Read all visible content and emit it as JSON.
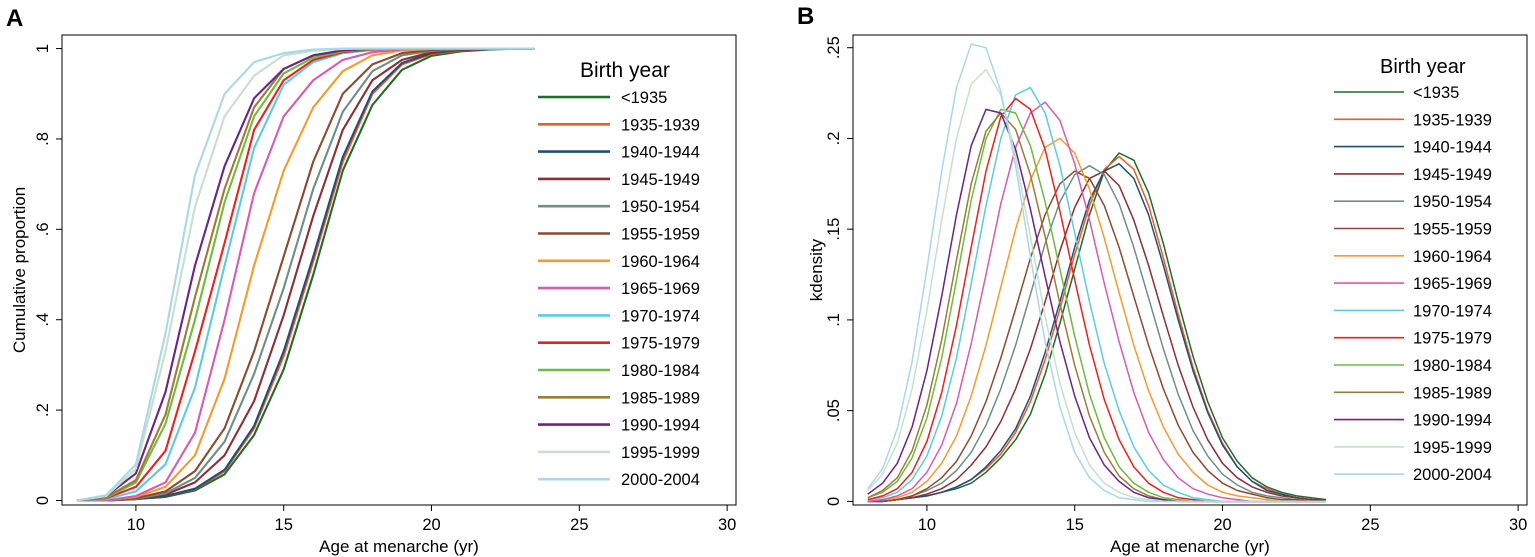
{
  "legend_title": "Birth year",
  "series_colors": [
    "#1f6b2c",
    "#ef5a26",
    "#1f4f7a",
    "#8b2f35",
    "#6f8f86",
    "#8c4a2f",
    "#f59a2e",
    "#d65bb1",
    "#5ccbe0",
    "#e8221f",
    "#6fbb3d",
    "#9c7a3a",
    "#6b2388",
    "#c9dfcc",
    "#a9d8e6"
  ],
  "chart_data": [
    {
      "panel_label": "A",
      "type": "line",
      "title": "",
      "xlabel": "Age at menarche (yr)",
      "ylabel": "Cumulative proportion",
      "xlim": [
        7.5,
        30.3
      ],
      "ylim": [
        -0.01,
        1.03
      ],
      "xticks": [
        10,
        15,
        20,
        25,
        30
      ],
      "yticks": [
        0,
        0.2,
        0.4,
        0.6,
        0.8,
        1
      ],
      "ytick_labels": [
        "0",
        ".2",
        ".4",
        ".6",
        ".8",
        "1"
      ],
      "grid": false,
      "legend_position": "right",
      "x": [
        8,
        9,
        10,
        11,
        12,
        13,
        14,
        15,
        16,
        17,
        18,
        19,
        20,
        21,
        22,
        23,
        23.5
      ],
      "series": [
        {
          "name": "<1935",
          "values": [
            0,
            0,
            0.003,
            0.008,
            0.022,
            0.058,
            0.145,
            0.29,
            0.5,
            0.73,
            0.875,
            0.953,
            0.984,
            0.994,
            0.998,
            1,
            1
          ]
        },
        {
          "name": "1935-1939",
          "values": [
            0,
            0,
            0.003,
            0.01,
            0.025,
            0.065,
            0.16,
            0.32,
            0.53,
            0.75,
            0.9,
            0.965,
            0.988,
            0.996,
            0.999,
            1,
            1
          ]
        },
        {
          "name": "1940-1944",
          "values": [
            0,
            0,
            0.003,
            0.01,
            0.026,
            0.068,
            0.165,
            0.33,
            0.54,
            0.76,
            0.905,
            0.968,
            0.99,
            0.997,
            0.999,
            1,
            1
          ]
        },
        {
          "name": "1945-1949",
          "values": [
            0,
            0,
            0.004,
            0.013,
            0.04,
            0.1,
            0.22,
            0.41,
            0.63,
            0.82,
            0.93,
            0.975,
            0.992,
            0.997,
            0.999,
            1,
            1
          ]
        },
        {
          "name": "1950-1954",
          "values": [
            0,
            0,
            0.004,
            0.016,
            0.05,
            0.13,
            0.28,
            0.47,
            0.69,
            0.86,
            0.95,
            0.985,
            0.995,
            0.999,
            1,
            1,
            1
          ]
        },
        {
          "name": "1955-1959",
          "values": [
            0,
            0,
            0.005,
            0.02,
            0.065,
            0.16,
            0.33,
            0.54,
            0.75,
            0.9,
            0.965,
            0.99,
            0.997,
            1,
            1,
            1,
            1
          ]
        },
        {
          "name": "1960-1964",
          "values": [
            0,
            0,
            0.008,
            0.03,
            0.1,
            0.27,
            0.52,
            0.73,
            0.87,
            0.95,
            0.985,
            0.996,
            0.999,
            1,
            1,
            1,
            1
          ]
        },
        {
          "name": "1965-1969",
          "values": [
            0,
            0,
            0.01,
            0.04,
            0.15,
            0.4,
            0.68,
            0.85,
            0.93,
            0.975,
            0.992,
            0.998,
            1,
            1,
            1,
            1,
            1
          ]
        },
        {
          "name": "1970-1974",
          "values": [
            0,
            0.003,
            0.02,
            0.08,
            0.25,
            0.52,
            0.78,
            0.92,
            0.97,
            0.99,
            0.997,
            1,
            1,
            1,
            1,
            1,
            1
          ]
        },
        {
          "name": "1975-1979",
          "values": [
            0,
            0.005,
            0.03,
            0.11,
            0.33,
            0.57,
            0.82,
            0.93,
            0.975,
            0.992,
            0.998,
            1,
            1,
            1,
            1,
            1,
            1
          ]
        },
        {
          "name": "1980-1984",
          "values": [
            0,
            0.006,
            0.04,
            0.17,
            0.4,
            0.66,
            0.85,
            0.945,
            0.98,
            0.994,
            0.999,
            1,
            1,
            1,
            1,
            1,
            1
          ]
        },
        {
          "name": "1985-1989",
          "values": [
            0,
            0.007,
            0.045,
            0.19,
            0.45,
            0.69,
            0.87,
            0.955,
            0.985,
            0.996,
            1,
            1,
            1,
            1,
            1,
            1,
            1
          ]
        },
        {
          "name": "1990-1994",
          "values": [
            0,
            0.01,
            0.06,
            0.24,
            0.52,
            0.74,
            0.89,
            0.955,
            0.985,
            0.996,
            1,
            1,
            1,
            1,
            1,
            1,
            1
          ]
        },
        {
          "name": "1995-1999",
          "values": [
            0,
            0.01,
            0.07,
            0.33,
            0.65,
            0.85,
            0.94,
            0.985,
            0.995,
            0.999,
            1,
            1,
            1,
            1,
            1,
            1,
            1
          ]
        },
        {
          "name": "2000-2004",
          "values": [
            0,
            0.012,
            0.08,
            0.37,
            0.72,
            0.9,
            0.97,
            0.99,
            0.998,
            1,
            1,
            1,
            1,
            1,
            1,
            1,
            1
          ]
        }
      ]
    },
    {
      "panel_label": "B",
      "type": "line",
      "title": "",
      "xlabel": "Age at menarche (yr)",
      "ylabel": "kdensity",
      "xlim": [
        7.5,
        30.3
      ],
      "ylim": [
        -0.002,
        0.257
      ],
      "xticks": [
        10,
        15,
        20,
        25,
        30
      ],
      "yticks": [
        0,
        0.05,
        0.1,
        0.15,
        0.2,
        0.25
      ],
      "ytick_labels": [
        "0",
        ".05",
        ".1",
        ".15",
        ".2",
        ".25"
      ],
      "grid": false,
      "legend_position": "right",
      "x": [
        8,
        8.5,
        9,
        9.5,
        10,
        10.5,
        11,
        11.5,
        12,
        12.5,
        13,
        13.5,
        14,
        14.5,
        15,
        15.5,
        16,
        16.5,
        17,
        17.5,
        18,
        18.5,
        19,
        19.5,
        20,
        20.5,
        21,
        21.5,
        22,
        22.5,
        23,
        23.5
      ],
      "series": [
        {
          "name": "<1935",
          "values": [
            0,
            0,
            0.001,
            0.002,
            0.003,
            0.005,
            0.007,
            0.01,
            0.016,
            0.024,
            0.034,
            0.048,
            0.07,
            0.098,
            0.128,
            0.158,
            0.182,
            0.192,
            0.188,
            0.17,
            0.142,
            0.11,
            0.08,
            0.055,
            0.035,
            0.022,
            0.013,
            0.008,
            0.005,
            0.003,
            0.002,
            0.001
          ]
        },
        {
          "name": "1935-1939",
          "values": [
            0,
            0,
            0.001,
            0.002,
            0.003,
            0.005,
            0.008,
            0.012,
            0.018,
            0.026,
            0.038,
            0.055,
            0.078,
            0.106,
            0.136,
            0.163,
            0.183,
            0.19,
            0.183,
            0.163,
            0.134,
            0.103,
            0.074,
            0.05,
            0.032,
            0.019,
            0.011,
            0.007,
            0.004,
            0.002,
            0.001,
            0.001
          ]
        },
        {
          "name": "1940-1944",
          "values": [
            0,
            0,
            0.001,
            0.002,
            0.003,
            0.005,
            0.008,
            0.012,
            0.019,
            0.028,
            0.04,
            0.058,
            0.082,
            0.11,
            0.14,
            0.166,
            0.182,
            0.186,
            0.178,
            0.158,
            0.13,
            0.1,
            0.072,
            0.049,
            0.031,
            0.019,
            0.011,
            0.006,
            0.004,
            0.002,
            0.001,
            0.001
          ]
        },
        {
          "name": "1945-1949",
          "values": [
            0,
            0,
            0.001,
            0.002,
            0.004,
            0.007,
            0.012,
            0.02,
            0.03,
            0.044,
            0.062,
            0.084,
            0.11,
            0.138,
            0.162,
            0.178,
            0.182,
            0.174,
            0.155,
            0.13,
            0.102,
            0.075,
            0.052,
            0.034,
            0.021,
            0.013,
            0.008,
            0.005,
            0.003,
            0.002,
            0.001,
            0
          ]
        },
        {
          "name": "1950-1954",
          "values": [
            0,
            0,
            0.001,
            0.003,
            0.006,
            0.01,
            0.017,
            0.027,
            0.042,
            0.062,
            0.086,
            0.114,
            0.142,
            0.165,
            0.18,
            0.185,
            0.18,
            0.164,
            0.14,
            0.112,
            0.084,
            0.059,
            0.039,
            0.025,
            0.015,
            0.009,
            0.005,
            0.003,
            0.002,
            0.001,
            0,
            0
          ]
        },
        {
          "name": "1955-1959",
          "values": [
            0,
            0,
            0.001,
            0.003,
            0.007,
            0.013,
            0.022,
            0.036,
            0.055,
            0.079,
            0.106,
            0.134,
            0.158,
            0.175,
            0.182,
            0.178,
            0.163,
            0.14,
            0.113,
            0.086,
            0.062,
            0.042,
            0.027,
            0.017,
            0.01,
            0.006,
            0.004,
            0.002,
            0.001,
            0.001,
            0,
            0
          ]
        },
        {
          "name": "1960-1964",
          "values": [
            0,
            0.001,
            0.002,
            0.005,
            0.011,
            0.021,
            0.036,
            0.058,
            0.086,
            0.118,
            0.15,
            0.177,
            0.195,
            0.2,
            0.192,
            0.172,
            0.145,
            0.115,
            0.086,
            0.061,
            0.041,
            0.026,
            0.016,
            0.009,
            0.005,
            0.003,
            0.002,
            0.001,
            0,
            0,
            0,
            0
          ]
        },
        {
          "name": "1965-1969",
          "values": [
            0,
            0.001,
            0.003,
            0.007,
            0.016,
            0.031,
            0.054,
            0.087,
            0.125,
            0.164,
            0.195,
            0.214,
            0.22,
            0.21,
            0.186,
            0.155,
            0.12,
            0.088,
            0.06,
            0.038,
            0.023,
            0.013,
            0.007,
            0.004,
            0.002,
            0.001,
            0,
            0,
            0,
            0,
            0,
            0
          ]
        },
        {
          "name": "1970-1974",
          "values": [
            0.001,
            0.002,
            0.005,
            0.012,
            0.025,
            0.047,
            0.079,
            0.12,
            0.163,
            0.2,
            0.224,
            0.228,
            0.214,
            0.185,
            0.148,
            0.11,
            0.076,
            0.05,
            0.03,
            0.017,
            0.009,
            0.005,
            0.002,
            0.001,
            0,
            0,
            0,
            0,
            0,
            0,
            0,
            0
          ]
        },
        {
          "name": "1975-1979",
          "values": [
            0.001,
            0.003,
            0.007,
            0.016,
            0.033,
            0.06,
            0.097,
            0.14,
            0.182,
            0.212,
            0.222,
            0.216,
            0.194,
            0.16,
            0.122,
            0.086,
            0.056,
            0.034,
            0.019,
            0.01,
            0.005,
            0.002,
            0.001,
            0,
            0,
            0,
            0,
            0,
            0,
            0,
            0,
            0
          ]
        },
        {
          "name": "1980-1984",
          "values": [
            0.002,
            0.005,
            0.011,
            0.024,
            0.046,
            0.079,
            0.122,
            0.166,
            0.2,
            0.216,
            0.214,
            0.196,
            0.165,
            0.128,
            0.091,
            0.059,
            0.035,
            0.019,
            0.01,
            0.005,
            0.002,
            0.001,
            0,
            0,
            0,
            0,
            0,
            0,
            0,
            0,
            0,
            0
          ]
        },
        {
          "name": "1985-1989",
          "values": [
            0.002,
            0.006,
            0.013,
            0.028,
            0.053,
            0.089,
            0.133,
            0.175,
            0.204,
            0.214,
            0.205,
            0.18,
            0.146,
            0.109,
            0.075,
            0.047,
            0.027,
            0.014,
            0.007,
            0.003,
            0.001,
            0,
            0,
            0,
            0,
            0,
            0,
            0,
            0,
            0,
            0,
            0
          ]
        },
        {
          "name": "1990-1994",
          "values": [
            0.004,
            0.01,
            0.021,
            0.041,
            0.072,
            0.113,
            0.158,
            0.196,
            0.216,
            0.214,
            0.194,
            0.161,
            0.124,
            0.088,
            0.058,
            0.035,
            0.02,
            0.011,
            0.005,
            0.002,
            0.001,
            0,
            0,
            0,
            0,
            0,
            0,
            0,
            0,
            0,
            0,
            0
          ]
        },
        {
          "name": "1995-1999",
          "values": [
            0.006,
            0.015,
            0.032,
            0.062,
            0.105,
            0.155,
            0.2,
            0.23,
            0.238,
            0.224,
            0.19,
            0.146,
            0.102,
            0.065,
            0.038,
            0.02,
            0.01,
            0.005,
            0.002,
            0.001,
            0,
            0,
            0,
            0,
            0,
            0,
            0,
            0,
            0,
            0,
            0,
            0
          ]
        },
        {
          "name": "2000-2004",
          "values": [
            0.007,
            0.018,
            0.04,
            0.077,
            0.128,
            0.182,
            0.228,
            0.252,
            0.25,
            0.226,
            0.185,
            0.135,
            0.088,
            0.052,
            0.027,
            0.013,
            0.006,
            0.002,
            0.001,
            0,
            0,
            0,
            0,
            0,
            0,
            0,
            0,
            0,
            0,
            0,
            0,
            0
          ]
        }
      ]
    }
  ]
}
